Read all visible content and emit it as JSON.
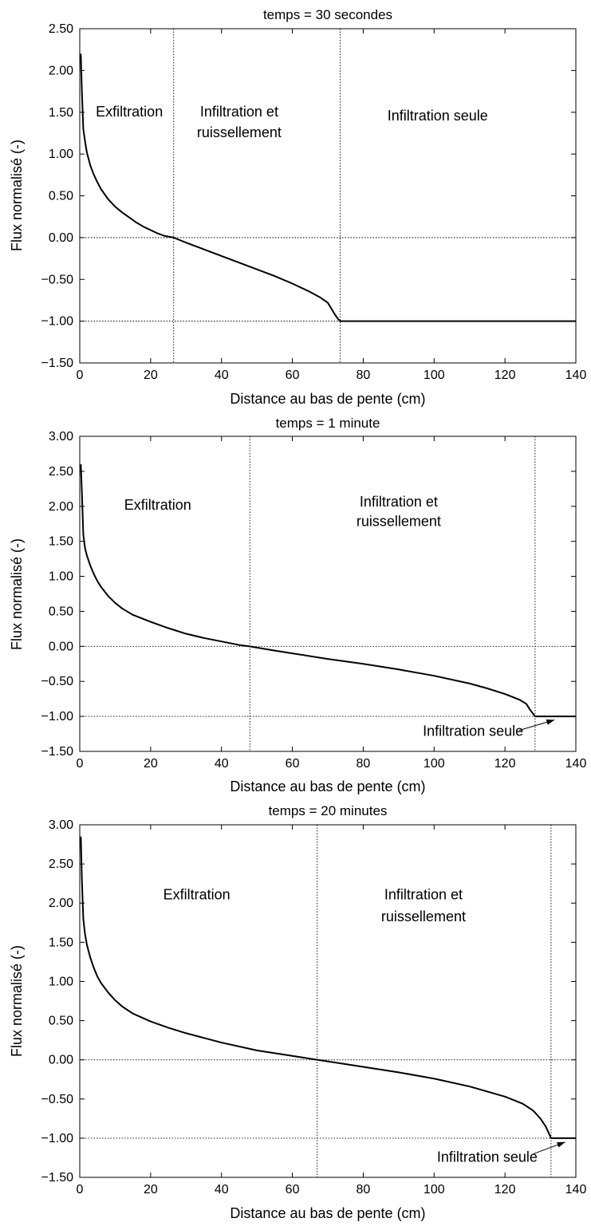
{
  "chart_data": [
    {
      "type": "line",
      "title": "temps = 30 secondes",
      "xlabel": "Distance au bas de pente (cm)",
      "ylabel": "Flux normalisé (-)",
      "xlim": [
        0,
        140
      ],
      "ylim": [
        -1.5,
        2.5
      ],
      "xticks": [
        "0",
        "20",
        "40",
        "60",
        "80",
        "100",
        "120",
        "140"
      ],
      "yticks": [
        "-1.50",
        "-1.00",
        "-0.50",
        "0.00",
        "0.50",
        "1.00",
        "1.50",
        "2.00",
        "2.50"
      ],
      "grid": false,
      "ref_lines": {
        "vertical_x": [
          26.5,
          73.5
        ],
        "horizontal_y": [
          0.0,
          -1.0
        ]
      },
      "annotations": [
        {
          "text": "Exfiltration",
          "x": 14,
          "y": 1.45
        },
        {
          "text": "Infiltration et",
          "x": 45,
          "y": 1.45
        },
        {
          "text": "ruissellement",
          "x": 45,
          "y": 1.2
        },
        {
          "text": "Infiltration seule",
          "x": 101,
          "y": 1.4
        }
      ],
      "x": [
        0.3,
        0.6,
        1,
        1.5,
        2,
        3,
        4,
        5,
        6,
        8,
        10,
        12,
        14,
        16,
        18,
        20,
        22,
        24,
        26.5,
        30,
        35,
        40,
        45,
        50,
        55,
        60,
        65,
        68,
        70,
        71,
        72,
        73,
        73.5,
        80,
        100,
        120,
        140
      ],
      "y": [
        2.2,
        1.75,
        1.3,
        1.15,
        1.02,
        0.86,
        0.75,
        0.66,
        0.58,
        0.46,
        0.37,
        0.3,
        0.24,
        0.18,
        0.13,
        0.09,
        0.05,
        0.02,
        0.0,
        -0.06,
        -0.14,
        -0.22,
        -0.3,
        -0.38,
        -0.46,
        -0.55,
        -0.65,
        -0.72,
        -0.78,
        -0.85,
        -0.92,
        -0.98,
        -1.0,
        -1.0,
        -1.0,
        -1.0,
        -1.0
      ]
    },
    {
      "type": "line",
      "title": "temps = 1 minute",
      "xlabel": "Distance au bas de pente (cm)",
      "ylabel": "Flux normalisé (-)",
      "xlim": [
        0,
        140
      ],
      "ylim": [
        -1.5,
        3.0
      ],
      "xticks": [
        "0",
        "20",
        "40",
        "60",
        "80",
        "100",
        "120",
        "140"
      ],
      "yticks": [
        "-1.50",
        "-1.00",
        "-0.50",
        "0.00",
        "0.50",
        "1.00",
        "1.50",
        "2.00",
        "2.50",
        "3.00"
      ],
      "grid": false,
      "ref_lines": {
        "vertical_x": [
          48,
          128.5
        ],
        "horizontal_y": [
          0.0,
          -1.0
        ]
      },
      "annotations": [
        {
          "text": "Exfiltration",
          "x": 22,
          "y": 1.95
        },
        {
          "text": "Infiltration et",
          "x": 90,
          "y": 2.0
        },
        {
          "text": "ruissellement",
          "x": 90,
          "y": 1.72
        },
        {
          "text": "Infiltration seule",
          "x": 111,
          "y": -1.28
        }
      ],
      "arrows": [
        {
          "from": [
            124,
            -1.2
          ],
          "to": [
            134,
            -1.05
          ]
        }
      ],
      "x": [
        0.3,
        0.6,
        1,
        1.5,
        2,
        3,
        4,
        5,
        6,
        8,
        10,
        12,
        15,
        20,
        25,
        30,
        35,
        40,
        45,
        48,
        55,
        60,
        70,
        80,
        90,
        100,
        110,
        115,
        120,
        124,
        126,
        127,
        128.5,
        130,
        140
      ],
      "y": [
        2.6,
        2.2,
        1.6,
        1.4,
        1.3,
        1.15,
        1.03,
        0.93,
        0.85,
        0.72,
        0.62,
        0.54,
        0.45,
        0.35,
        0.26,
        0.18,
        0.12,
        0.07,
        0.02,
        0.0,
        -0.06,
        -0.1,
        -0.18,
        -0.25,
        -0.33,
        -0.42,
        -0.53,
        -0.6,
        -0.68,
        -0.76,
        -0.82,
        -0.9,
        -1.0,
        -1.0,
        -1.0
      ]
    },
    {
      "type": "line",
      "title": "temps = 20 minutes",
      "xlabel": "Distance au bas de pente (cm)",
      "ylabel": "Flux normalisé (-)",
      "xlim": [
        0,
        140
      ],
      "ylim": [
        -1.5,
        3.0
      ],
      "xticks": [
        "0",
        "20",
        "40",
        "60",
        "80",
        "100",
        "120",
        "140"
      ],
      "yticks": [
        "-1.50",
        "-1.00",
        "-0.50",
        "0.00",
        "0.50",
        "1.00",
        "1.50",
        "2.00",
        "2.50",
        "3.00"
      ],
      "grid": false,
      "ref_lines": {
        "vertical_x": [
          67,
          133
        ],
        "horizontal_y": [
          0.0,
          -1.0
        ]
      },
      "annotations": [
        {
          "text": "Exfiltration",
          "x": 33,
          "y": 2.05
        },
        {
          "text": "Infiltration et",
          "x": 97,
          "y": 2.05
        },
        {
          "text": "ruissellement",
          "x": 97,
          "y": 1.77
        },
        {
          "text": "Infiltration seule",
          "x": 115,
          "y": -1.3
        }
      ],
      "arrows": [
        {
          "from": [
            128,
            -1.2
          ],
          "to": [
            137,
            -1.05
          ]
        }
      ],
      "x": [
        0.3,
        0.6,
        1,
        1.5,
        2,
        3,
        4,
        5,
        6,
        8,
        10,
        12,
        15,
        20,
        25,
        30,
        40,
        50,
        60,
        67,
        70,
        80,
        90,
        100,
        110,
        120,
        125,
        128,
        130,
        131.5,
        133,
        135,
        140
      ],
      "y": [
        2.85,
        2.3,
        1.8,
        1.6,
        1.47,
        1.3,
        1.17,
        1.06,
        0.98,
        0.86,
        0.76,
        0.68,
        0.59,
        0.49,
        0.41,
        0.34,
        0.22,
        0.12,
        0.05,
        0.0,
        -0.02,
        -0.09,
        -0.16,
        -0.24,
        -0.34,
        -0.47,
        -0.56,
        -0.65,
        -0.75,
        -0.85,
        -1.0,
        -1.0,
        -1.0
      ]
    }
  ]
}
